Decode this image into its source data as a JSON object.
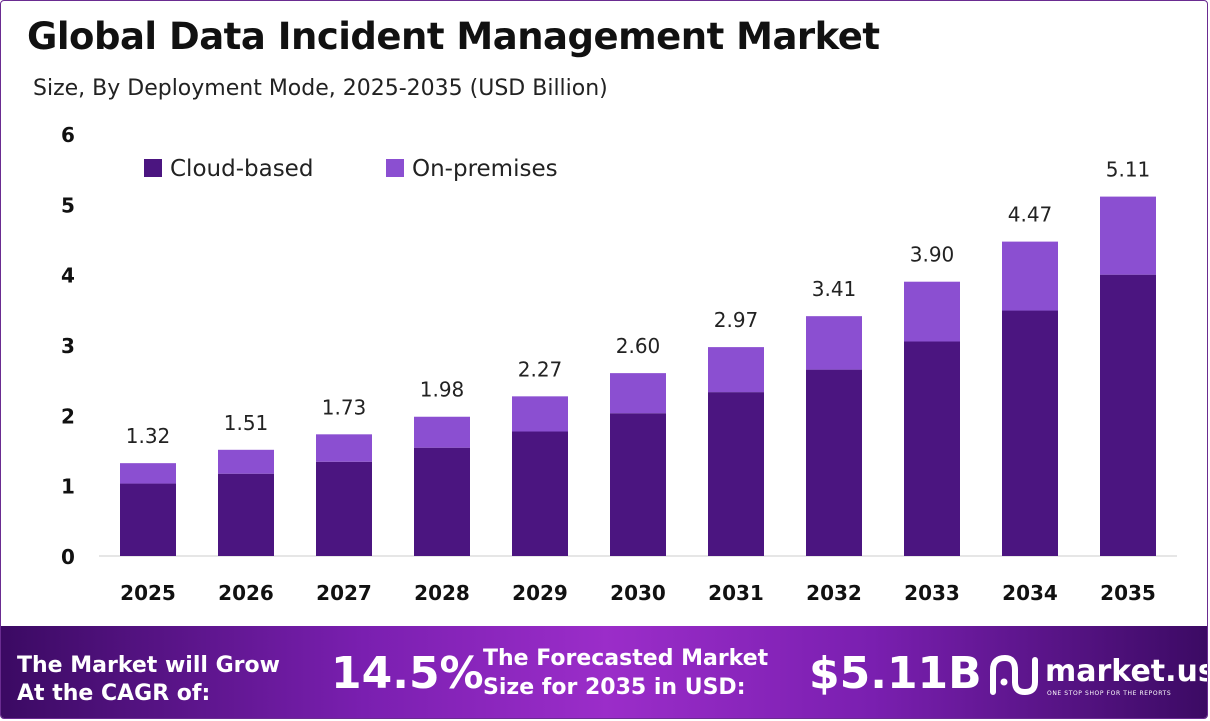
{
  "title": "Global Data Incident Management Market",
  "subtitle": "Size, By Deployment Mode, 2025-2035 (USD Billion)",
  "chart_data": {
    "type": "bar",
    "stacked": true,
    "categories": [
      "2025",
      "2026",
      "2027",
      "2028",
      "2029",
      "2030",
      "2031",
      "2032",
      "2033",
      "2034",
      "2035"
    ],
    "series": [
      {
        "name": "Cloud-based",
        "color": "#4b1580",
        "values": [
          1.03,
          1.17,
          1.34,
          1.54,
          1.77,
          2.03,
          2.33,
          2.65,
          3.05,
          3.49,
          4.0
        ]
      },
      {
        "name": "On-premises",
        "color": "#8b4fd1",
        "values": [
          0.29,
          0.34,
          0.39,
          0.44,
          0.5,
          0.57,
          0.64,
          0.76,
          0.85,
          0.98,
          1.11
        ]
      }
    ],
    "totals": [
      "1.32",
      "1.51",
      "1.73",
      "1.98",
      "2.27",
      "2.60",
      "2.97",
      "3.41",
      "3.90",
      "4.47",
      "5.11"
    ],
    "ylim": [
      0,
      6
    ],
    "yticks": [
      "0",
      "1",
      "2",
      "3",
      "4",
      "5",
      "6"
    ],
    "grid": false,
    "legend": "top-left"
  },
  "footer": {
    "cagr_label_line1": "The Market will Grow",
    "cagr_label_line2": "At the CAGR of:",
    "cagr_value": "14.5%",
    "forecast_label_line1": "The Forecasted Market",
    "forecast_label_line2": "Size for 2035 in USD:",
    "forecast_value": "$5.11B",
    "brand_name": "market.us",
    "brand_tagline": "ONE STOP SHOP FOR THE REPORTS"
  }
}
